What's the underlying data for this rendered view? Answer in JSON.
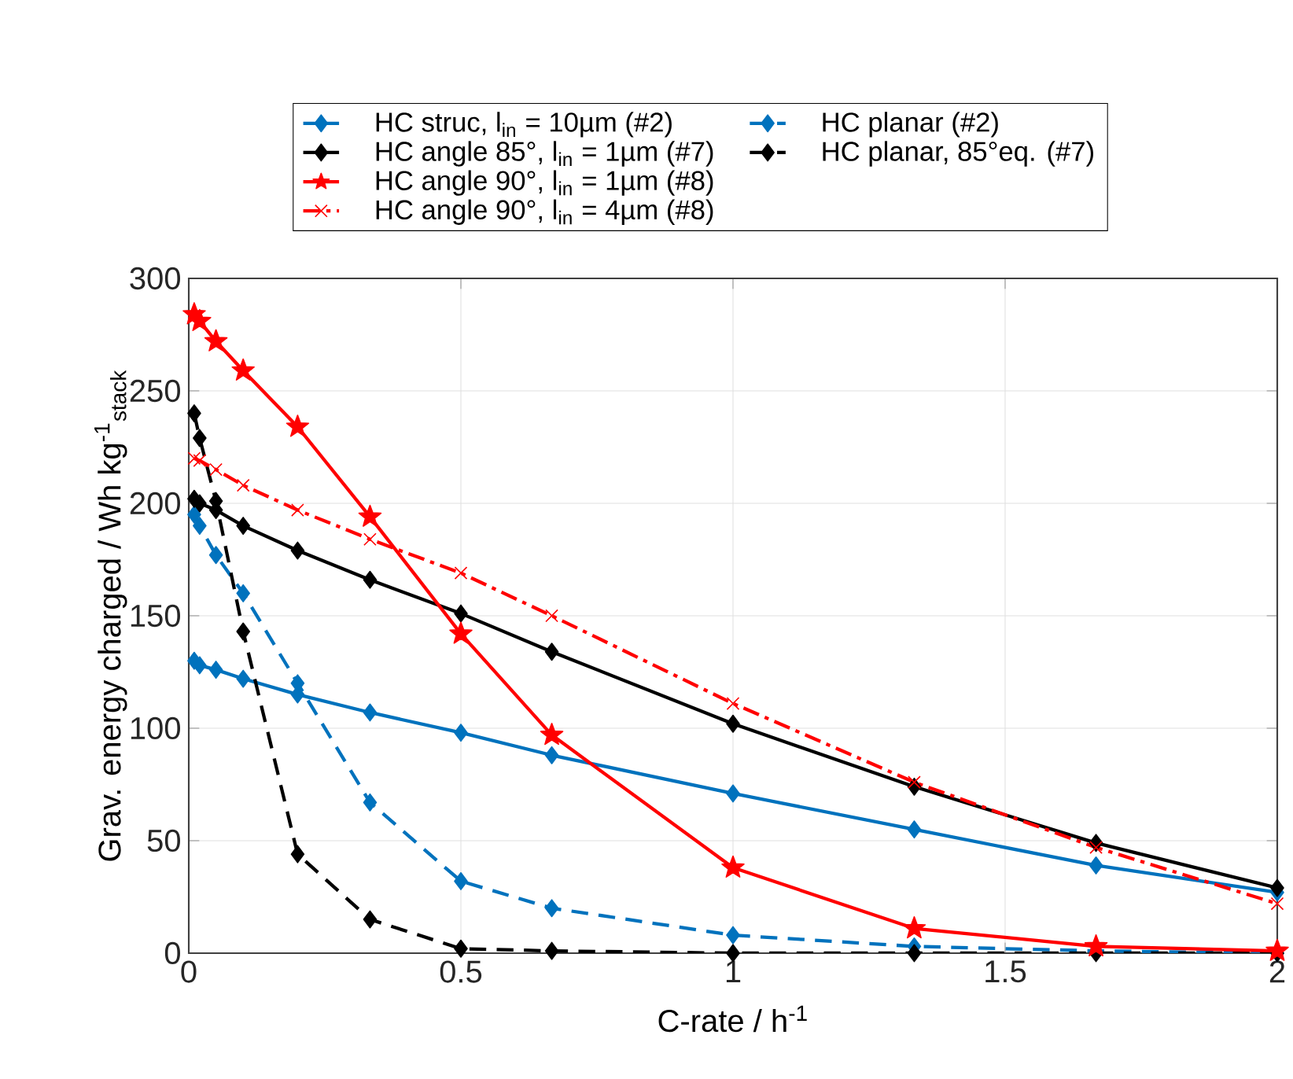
{
  "chart_data": {
    "type": "line",
    "xlabel": "C-rate / h$^{-1}$",
    "ylabel": "Grav. energy charged / Wh kg$^{-1}$$_{stack}$",
    "x": [
      0.01,
      0.02,
      0.05,
      0.1,
      0.2,
      0.333,
      0.5,
      0.667,
      1,
      1.333,
      1.667,
      2
    ],
    "series": [
      {
        "name": "HC struc, l$_{in}$ = 10µm (#2)",
        "color": "#0072bd",
        "marker": "diamond",
        "line_style": "solid",
        "values": [
          130,
          128,
          126,
          122,
          115,
          107,
          98,
          88,
          71,
          55,
          39,
          27
        ]
      },
      {
        "name": "HC angle 85°, l$_{in}$ = 1µm (#7)",
        "color": "#000000",
        "marker": "diamond",
        "line_style": "solid",
        "values": [
          202,
          200,
          197,
          190,
          179,
          166,
          151,
          134,
          102,
          74,
          49,
          29
        ]
      },
      {
        "name": "HC angle 90°, l$_{in}$ = 1µm (#8)",
        "color": "#ff0000",
        "marker": "star",
        "line_style": "solid",
        "values": [
          284,
          281,
          272,
          259,
          234,
          194,
          142,
          97,
          38,
          11,
          3,
          1
        ]
      },
      {
        "name": "HC angle 90°, l$_{in}$ = 4µm (#8)",
        "color": "#ff0000",
        "marker": "cross",
        "line_style": "dashdot",
        "values": [
          220,
          219,
          215,
          208,
          197,
          184,
          169,
          150,
          111,
          76,
          47,
          22
        ]
      },
      {
        "name": "HC planar (#2)",
        "color": "#0072bd",
        "marker": "diamond",
        "line_style": "dashed",
        "values": [
          195,
          190,
          177,
          160,
          120,
          67,
          32,
          20,
          8,
          3,
          1,
          0
        ]
      },
      {
        "name": "HC planar, 85°eq. (#7)",
        "color": "#000000",
        "marker": "diamond",
        "line_style": "dashed",
        "values": [
          240,
          229,
          201,
          143,
          44,
          15,
          2,
          1,
          0,
          0,
          0,
          0
        ]
      }
    ],
    "xlim": [
      0,
      2
    ],
    "ylim": [
      0,
      300
    ],
    "xticks": [
      0,
      0.5,
      1,
      1.5,
      2
    ],
    "yticks": [
      0,
      50,
      100,
      150,
      200,
      250,
      300
    ],
    "grid": true,
    "legend": "top"
  }
}
